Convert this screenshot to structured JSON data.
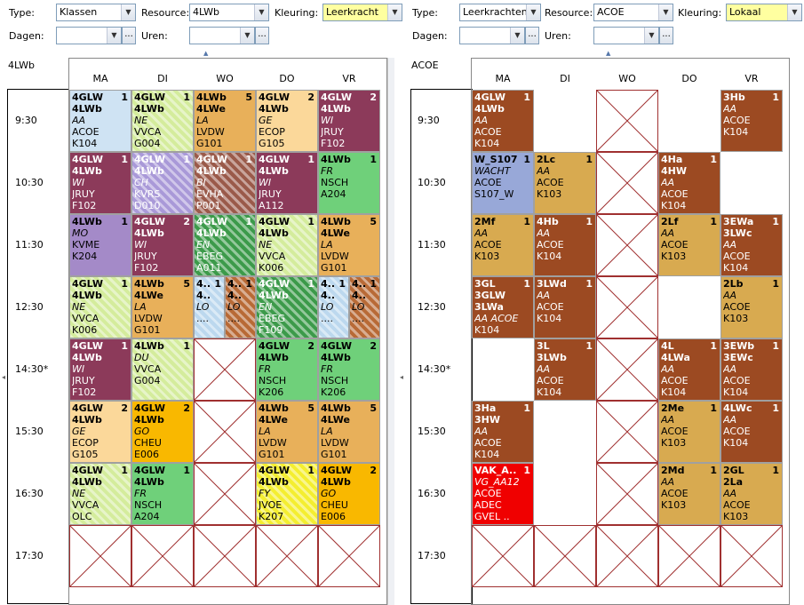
{
  "left": {
    "type_label": "Type:",
    "type_value": "Klassen",
    "resource_label": "Resource:",
    "resource_value": "4LWb",
    "kleuring_label": "Kleuring:",
    "kleuring_value": "Leerkracht",
    "dagen_label": "Dagen:",
    "uren_label": "Uren:",
    "title": "4LWb",
    "days": [
      "MA",
      "DI",
      "WO",
      "DO",
      "VR"
    ],
    "times": [
      "9:30",
      "10:30",
      "11:30",
      "12:30",
      "14:30*",
      "15:30",
      "16:30",
      "17:30"
    ]
  },
  "right": {
    "type_label": "Type:",
    "type_value": "Leerkrachten",
    "resource_label": "Resource:",
    "resource_value": "ACOE",
    "kleuring_label": "Kleuring:",
    "kleuring_value": "Lokaal",
    "dagen_label": "Dagen:",
    "uren_label": "Uren:",
    "title": "ACOE",
    "days": [
      "MA",
      "DI",
      "WO",
      "DO",
      "VR"
    ],
    "times": [
      "9:30",
      "10:30",
      "11:30",
      "12:30",
      "14:30*",
      "15:30",
      "16:30",
      "17:30"
    ]
  },
  "dots_label": "...",
  "dropdown_glyph": "▼",
  "left_cells": [
    {
      "day": 0,
      "row": 0,
      "color": "#cfe3f3",
      "n": "1",
      "lines": [
        "4GLW",
        "4LWb",
        "AA",
        "ACOE",
        "K104"
      ],
      "styles": [
        "b",
        "b",
        "i",
        "",
        ""
      ]
    },
    {
      "day": 1,
      "row": 0,
      "color": "#d4ec9c",
      "hatch": true,
      "n": "1",
      "lines": [
        "4GLW",
        "4LWb",
        "NE",
        "VVCA",
        "G004"
      ],
      "styles": [
        "b",
        "b",
        "i",
        "",
        ""
      ]
    },
    {
      "day": 2,
      "row": 0,
      "color": "#e8b05a",
      "n": "5",
      "lines": [
        "4LWb",
        "4LWe",
        "LA",
        "LVDW",
        "G101"
      ],
      "styles": [
        "b",
        "b",
        "i",
        "",
        ""
      ]
    },
    {
      "day": 3,
      "row": 0,
      "color": "#fbd89a",
      "n": "2",
      "lines": [
        "4GLW",
        "4LWb",
        "GE",
        "ECOP",
        "G105"
      ],
      "styles": [
        "b",
        "b",
        "i",
        "",
        ""
      ]
    },
    {
      "day": 4,
      "row": 0,
      "color": "#8c3a5a",
      "fg": "#fff",
      "n": "2",
      "lines": [
        "4GLW",
        "4LWb",
        "WI",
        "JRUY",
        "F102"
      ],
      "styles": [
        "b",
        "b",
        "i",
        "",
        ""
      ]
    },
    {
      "day": 0,
      "row": 1,
      "color": "#8c3a5a",
      "fg": "#fff",
      "n": "1",
      "lines": [
        "4GLW",
        "4LWb",
        "WI",
        "JRUY",
        "F102"
      ],
      "styles": [
        "b",
        "b",
        "i",
        "",
        ""
      ]
    },
    {
      "day": 1,
      "row": 1,
      "color": "#a999d8",
      "fg": "#fff",
      "hatch": true,
      "n": "1",
      "lines": [
        "4GLW",
        "4LWb",
        "CH",
        "KVRS",
        "D010"
      ],
      "styles": [
        "b",
        "b",
        "i",
        "",
        ""
      ]
    },
    {
      "day": 2,
      "row": 1,
      "color": "#9a5a4a",
      "fg": "#fff",
      "hatch": true,
      "n": "1",
      "lines": [
        "4GLW",
        "4LWb",
        "BI",
        "EVHA",
        "P001"
      ],
      "styles": [
        "b",
        "b",
        "i",
        "",
        ""
      ]
    },
    {
      "day": 3,
      "row": 1,
      "color": "#8c3a5a",
      "fg": "#fff",
      "n": "1",
      "lines": [
        "4GLW",
        "4LWb",
        "WI",
        "JRUY",
        "A112"
      ],
      "styles": [
        "b",
        "b",
        "i",
        "",
        ""
      ]
    },
    {
      "day": 4,
      "row": 1,
      "color": "#6fd07a",
      "n": "1",
      "lines": [
        "4LWb",
        "FR",
        "NSCH",
        "A204"
      ],
      "styles": [
        "b",
        "i",
        "",
        ""
      ]
    },
    {
      "day": 0,
      "row": 2,
      "color": "#a48ac8",
      "n": "1",
      "lines": [
        "4LWb",
        "MO",
        "KVME",
        "K204"
      ],
      "styles": [
        "b",
        "i",
        "",
        ""
      ]
    },
    {
      "day": 1,
      "row": 2,
      "color": "#8c3a5a",
      "fg": "#fff",
      "n": "2",
      "lines": [
        "4GLW",
        "4LWb",
        "WI",
        "JRUY",
        "F102"
      ],
      "styles": [
        "b",
        "b",
        "i",
        "",
        ""
      ]
    },
    {
      "day": 2,
      "row": 2,
      "color": "#3c9a4a",
      "fg": "#fff",
      "hatch": true,
      "n": "1",
      "lines": [
        "4GLW",
        "4LWb",
        "EN",
        "EBEG",
        "A011"
      ],
      "styles": [
        "b",
        "b",
        "i",
        "",
        ""
      ]
    },
    {
      "day": 3,
      "row": 2,
      "color": "#d4ec9c",
      "hatch": true,
      "n": "1",
      "lines": [
        "4GLW",
        "4LWb",
        "NE",
        "VVCA",
        "K006"
      ],
      "styles": [
        "b",
        "b",
        "i",
        "",
        ""
      ]
    },
    {
      "day": 4,
      "row": 2,
      "color": "#e8b05a",
      "n": "5",
      "lines": [
        "4LWb",
        "4LWe",
        "LA",
        "LVDW",
        "G101"
      ],
      "styles": [
        "b",
        "b",
        "i",
        "",
        ""
      ]
    },
    {
      "day": 0,
      "row": 3,
      "color": "#d4ec9c",
      "hatch": true,
      "n": "1",
      "lines": [
        "4GLW",
        "4LWb",
        "NE",
        "VVCA",
        "K006"
      ],
      "styles": [
        "b",
        "b",
        "i",
        "",
        ""
      ]
    },
    {
      "day": 1,
      "row": 3,
      "color": "#e8b05a",
      "n": "5",
      "lines": [
        "4LWb",
        "4LWe",
        "LA",
        "LVDW",
        "G101"
      ],
      "styles": [
        "b",
        "b",
        "i",
        "",
        ""
      ]
    },
    {
      "day": 2,
      "row": 3,
      "half": 0,
      "color": "#bcd8ee",
      "hatch": true,
      "n": "1",
      "lines": [
        "4..",
        "4..",
        "LO",
        "...."
      ],
      "styles": [
        "b",
        "b",
        "i",
        ""
      ]
    },
    {
      "day": 2,
      "row": 3,
      "half": 1,
      "color": "#b86a36",
      "hatch": true,
      "n": "1",
      "lines": [
        "4..",
        "4..",
        "LO",
        "...."
      ],
      "styles": [
        "b",
        "b",
        "i",
        ""
      ]
    },
    {
      "day": 3,
      "row": 3,
      "color": "#3c9a4a",
      "fg": "#fff",
      "hatch": true,
      "n": "1",
      "lines": [
        "4GLW",
        "4LWb",
        "EN",
        "EBEG",
        "F109"
      ],
      "styles": [
        "b",
        "b",
        "i",
        "",
        ""
      ]
    },
    {
      "day": 4,
      "row": 3,
      "half": 0,
      "color": "#bcd8ee",
      "hatch": true,
      "n": "1",
      "lines": [
        "4..",
        "4..",
        "LO",
        "...."
      ],
      "styles": [
        "b",
        "b",
        "i",
        ""
      ]
    },
    {
      "day": 4,
      "row": 3,
      "half": 1,
      "color": "#b86a36",
      "hatch": true,
      "n": "1",
      "lines": [
        "4..",
        "4..",
        "LO",
        "...."
      ],
      "styles": [
        "b",
        "b",
        "i",
        ""
      ]
    },
    {
      "day": 0,
      "row": 4,
      "color": "#8c3a5a",
      "fg": "#fff",
      "n": "1",
      "lines": [
        "4GLW",
        "4LWb",
        "WI",
        "JRUY",
        "F102"
      ],
      "styles": [
        "b",
        "b",
        "i",
        "",
        ""
      ]
    },
    {
      "day": 1,
      "row": 4,
      "color": "#d4ec9c",
      "hatch": true,
      "n": "1",
      "lines": [
        "4LWb",
        "DU",
        "VVCA",
        "G004"
      ],
      "styles": [
        "b",
        "i",
        "",
        ""
      ]
    },
    {
      "day": 3,
      "row": 4,
      "color": "#6fd07a",
      "n": "2",
      "lines": [
        "4GLW",
        "4LWb",
        "FR",
        "NSCH",
        "K206"
      ],
      "styles": [
        "b",
        "b",
        "i",
        "",
        ""
      ]
    },
    {
      "day": 4,
      "row": 4,
      "color": "#6fd07a",
      "n": "2",
      "lines": [
        "4GLW",
        "4LWb",
        "FR",
        "NSCH",
        "K206"
      ],
      "styles": [
        "b",
        "b",
        "i",
        "",
        ""
      ]
    },
    {
      "day": 0,
      "row": 5,
      "color": "#fbd89a",
      "n": "2",
      "lines": [
        "4GLW",
        "4LWb",
        "GE",
        "ECOP",
        "G105"
      ],
      "styles": [
        "b",
        "b",
        "i",
        "",
        ""
      ]
    },
    {
      "day": 1,
      "row": 5,
      "color": "#f9b800",
      "n": "2",
      "lines": [
        "4GLW",
        "4LWb",
        "GO",
        "CHEU",
        "E006"
      ],
      "styles": [
        "b",
        "b",
        "i",
        "",
        ""
      ]
    },
    {
      "day": 3,
      "row": 5,
      "color": "#e8b05a",
      "n": "5",
      "lines": [
        "4LWb",
        "4LWe",
        "LA",
        "LVDW",
        "G101"
      ],
      "styles": [
        "b",
        "b",
        "i",
        "",
        ""
      ]
    },
    {
      "day": 4,
      "row": 5,
      "color": "#e8b05a",
      "n": "5",
      "lines": [
        "4LWb",
        "4LWe",
        "LA",
        "LVDW",
        "G101"
      ],
      "styles": [
        "b",
        "b",
        "i",
        "",
        ""
      ]
    },
    {
      "day": 0,
      "row": 6,
      "color": "#d4ec9c",
      "hatch": true,
      "n": "1",
      "lines": [
        "4GLW",
        "4LWb",
        "NE",
        "VVCA",
        "OLC"
      ],
      "styles": [
        "b",
        "b",
        "i",
        "",
        ""
      ]
    },
    {
      "day": 1,
      "row": 6,
      "color": "#6fd07a",
      "n": "1",
      "lines": [
        "4GLW",
        "4LWb",
        "FR",
        "NSCH",
        "A204"
      ],
      "styles": [
        "b",
        "b",
        "i",
        "",
        ""
      ]
    },
    {
      "day": 3,
      "row": 6,
      "color": "#f4ee30",
      "hatch": true,
      "n": "1",
      "lines": [
        "4GLW",
        "4LWb",
        "FY",
        "JVOE",
        "K207"
      ],
      "styles": [
        "b",
        "b",
        "i",
        "",
        ""
      ]
    },
    {
      "day": 4,
      "row": 6,
      "color": "#f9b800",
      "n": "2",
      "lines": [
        "4GLW",
        "4LWb",
        "GO",
        "CHEU",
        "E006"
      ],
      "styles": [
        "b",
        "b",
        "i",
        "",
        ""
      ]
    }
  ],
  "left_empty": [
    [
      2,
      4
    ],
    [
      2,
      5
    ],
    [
      2,
      6
    ],
    [
      0,
      7
    ],
    [
      1,
      7
    ],
    [
      2,
      7
    ],
    [
      3,
      7
    ],
    [
      4,
      7
    ]
  ],
  "right_cells": [
    {
      "day": 0,
      "row": 0,
      "color": "#9c4a22",
      "fg": "#fff",
      "n": "1",
      "lines": [
        "4GLW",
        "4LWb",
        "AA",
        "ACOE",
        "K104"
      ],
      "styles": [
        "b",
        "b",
        "i",
        "",
        ""
      ]
    },
    {
      "day": 4,
      "row": 0,
      "color": "#9c4a22",
      "fg": "#fff",
      "n": "1",
      "lines": [
        "3Hb",
        "AA",
        "ACOE",
        "K104"
      ],
      "styles": [
        "b",
        "i",
        "",
        ""
      ]
    },
    {
      "day": 0,
      "row": 1,
      "color": "#98a8d8",
      "n": "1",
      "lines": [
        "W_S107",
        "WACHT",
        "ACOE",
        "S107_W"
      ],
      "styles": [
        "b",
        "i",
        "",
        ""
      ]
    },
    {
      "day": 1,
      "row": 1,
      "color": "#d8aa50",
      "n": "1",
      "lines": [
        "2Lc",
        "AA",
        "ACOE",
        "K103"
      ],
      "styles": [
        "b",
        "i",
        "",
        ""
      ]
    },
    {
      "day": 3,
      "row": 1,
      "color": "#9c4a22",
      "fg": "#fff",
      "n": "1",
      "lines": [
        "4Ha",
        "4HW",
        "AA",
        "ACOE",
        "K104"
      ],
      "styles": [
        "b",
        "b",
        "i",
        "",
        ""
      ]
    },
    {
      "day": 0,
      "row": 2,
      "color": "#d8aa50",
      "n": "1",
      "lines": [
        "2Mf",
        "AA",
        "ACOE",
        "K103"
      ],
      "styles": [
        "b",
        "i",
        "",
        ""
      ]
    },
    {
      "day": 1,
      "row": 2,
      "color": "#9c4a22",
      "fg": "#fff",
      "n": "1",
      "lines": [
        "4Hb",
        "AA",
        "ACOE",
        "K104"
      ],
      "styles": [
        "b",
        "i",
        "",
        ""
      ]
    },
    {
      "day": 3,
      "row": 2,
      "color": "#d8aa50",
      "n": "1",
      "lines": [
        "2Lf",
        "AA",
        "ACOE",
        "K103"
      ],
      "styles": [
        "b",
        "i",
        "",
        ""
      ]
    },
    {
      "day": 4,
      "row": 2,
      "color": "#9c4a22",
      "fg": "#fff",
      "n": "1",
      "lines": [
        "3EWa",
        "3LWc",
        "AA",
        "ACOE",
        "K104"
      ],
      "styles": [
        "b",
        "b",
        "i",
        "",
        ""
      ]
    },
    {
      "day": 0,
      "row": 3,
      "color": "#9c4a22",
      "fg": "#fff",
      "n": "1",
      "lines": [
        "3GL",
        "3GLW",
        "3LWa",
        "AA  ACOE",
        "K104"
      ],
      "styles": [
        "b",
        "b",
        "b",
        "i",
        ""
      ]
    },
    {
      "day": 1,
      "row": 3,
      "color": "#9c4a22",
      "fg": "#fff",
      "n": "1",
      "lines": [
        "3LWd",
        "AA",
        "ACOE",
        "K104"
      ],
      "styles": [
        "b",
        "i",
        "",
        ""
      ]
    },
    {
      "day": 4,
      "row": 3,
      "color": "#d8aa50",
      "n": "1",
      "lines": [
        "2Lb",
        "AA",
        "ACOE",
        "K103"
      ],
      "styles": [
        "b",
        "i",
        "",
        ""
      ]
    },
    {
      "day": 1,
      "row": 4,
      "color": "#9c4a22",
      "fg": "#fff",
      "n": "1",
      "lines": [
        "3L",
        "3LWb",
        "AA",
        "ACOE",
        "K104"
      ],
      "styles": [
        "b",
        "b",
        "i",
        "",
        ""
      ]
    },
    {
      "day": 3,
      "row": 4,
      "color": "#9c4a22",
      "fg": "#fff",
      "n": "1",
      "lines": [
        "4L",
        "4LWa",
        "AA",
        "ACOE",
        "K104"
      ],
      "styles": [
        "b",
        "b",
        "i",
        "",
        ""
      ]
    },
    {
      "day": 4,
      "row": 4,
      "color": "#9c4a22",
      "fg": "#fff",
      "n": "1",
      "lines": [
        "3EWb",
        "3EWc",
        "AA",
        "ACOE",
        "K104"
      ],
      "styles": [
        "b",
        "b",
        "i",
        "",
        ""
      ]
    },
    {
      "day": 0,
      "row": 5,
      "color": "#9c4a22",
      "fg": "#fff",
      "n": "1",
      "lines": [
        "3Ha",
        "3HW",
        "AA",
        "ACOE",
        "K104"
      ],
      "styles": [
        "b",
        "b",
        "i",
        "",
        ""
      ]
    },
    {
      "day": 3,
      "row": 5,
      "color": "#d8aa50",
      "n": "1",
      "lines": [
        "2Me",
        "AA",
        "ACOE",
        "K103"
      ],
      "styles": [
        "b",
        "i",
        "",
        ""
      ]
    },
    {
      "day": 4,
      "row": 5,
      "color": "#9c4a22",
      "fg": "#fff",
      "n": "1",
      "lines": [
        "4LWc",
        "AA",
        "ACOE",
        "K104"
      ],
      "styles": [
        "b",
        "i",
        "",
        ""
      ]
    },
    {
      "day": 0,
      "row": 6,
      "color": "#f00000",
      "fg": "#fff",
      "n": "1",
      "lines": [
        "VAK_A..",
        "VG_AA12",
        "ACOE",
        "ADEC",
        "GVEL .."
      ],
      "styles": [
        "b",
        "i",
        "",
        "",
        ""
      ]
    },
    {
      "day": 3,
      "row": 6,
      "color": "#d8aa50",
      "n": "1",
      "lines": [
        "2Md",
        "AA",
        "ACOE",
        "K103"
      ],
      "styles": [
        "b",
        "i",
        "",
        ""
      ]
    },
    {
      "day": 4,
      "row": 6,
      "color": "#d8aa50",
      "n": "1",
      "lines": [
        "2GL",
        "2La",
        "AA",
        "ACOE",
        "K103"
      ],
      "styles": [
        "b",
        "b",
        "i",
        "",
        ""
      ]
    }
  ],
  "right_empty": [
    [
      2,
      0
    ],
    [
      2,
      1
    ],
    [
      2,
      2
    ],
    [
      2,
      3
    ],
    [
      2,
      4
    ],
    [
      2,
      5
    ],
    [
      2,
      6
    ],
    [
      0,
      7
    ],
    [
      1,
      7
    ],
    [
      2,
      7
    ],
    [
      3,
      7
    ],
    [
      4,
      7
    ]
  ]
}
